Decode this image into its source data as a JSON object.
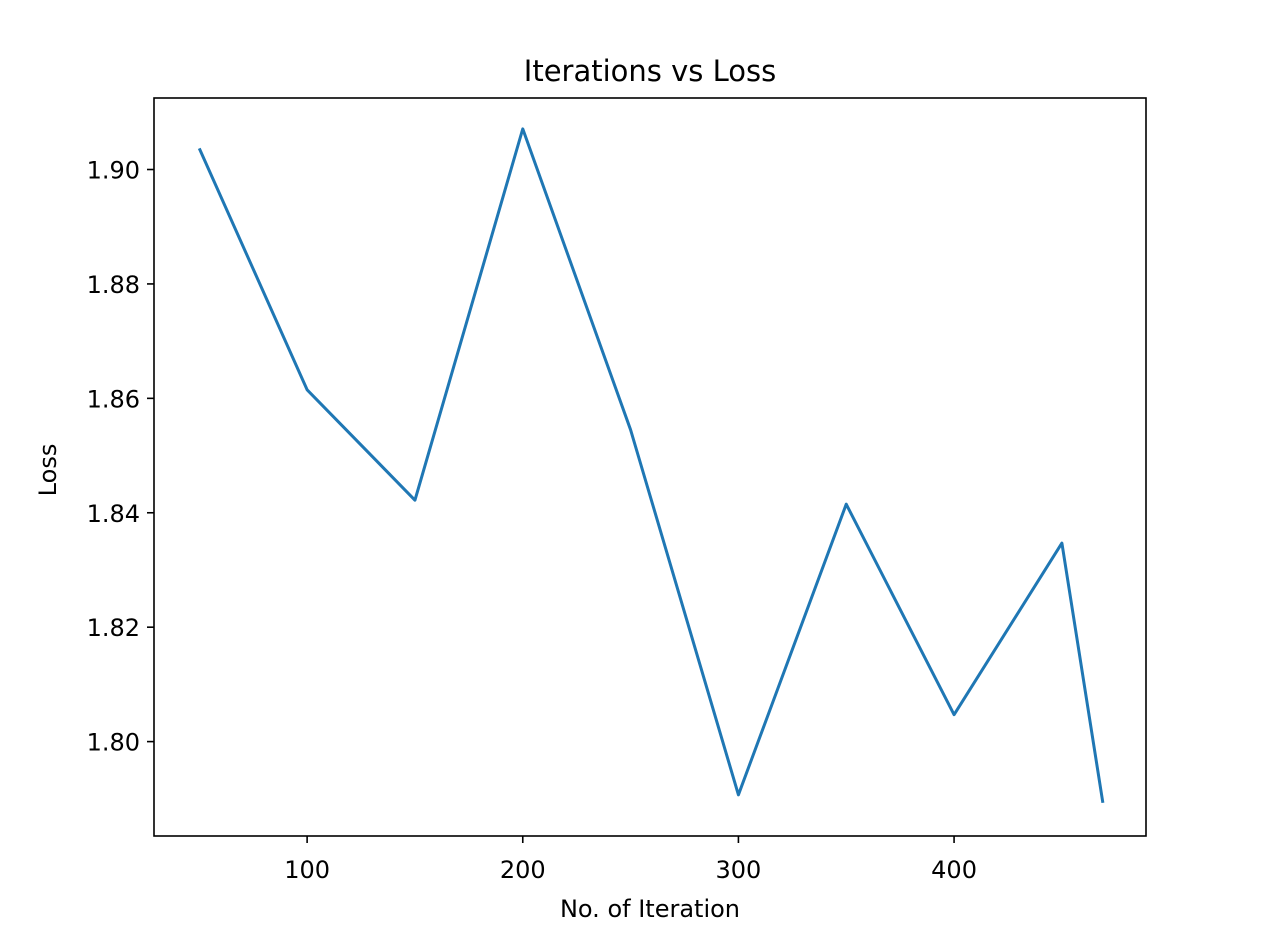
{
  "chart_data": {
    "type": "line",
    "title": "Iterations vs Loss",
    "xlabel": "No. of Iteration",
    "ylabel": "Loss",
    "xlim": [
      29,
      489
    ],
    "ylim": [
      1.7835,
      1.9125
    ],
    "x_ticks": [
      100,
      200,
      300,
      400
    ],
    "x_tick_labels": [
      "100",
      "200",
      "300",
      "400"
    ],
    "y_ticks": [
      1.8,
      1.82,
      1.84,
      1.86,
      1.88,
      1.9
    ],
    "y_tick_labels": [
      "1.80",
      "1.82",
      "1.84",
      "1.86",
      "1.88",
      "1.90"
    ],
    "grid": false,
    "legend": "none",
    "series": [
      {
        "color": "#1f77b4",
        "x": [
          50,
          100,
          150,
          200,
          250,
          300,
          350,
          400,
          450,
          469
        ],
        "y": [
          1.9037,
          1.8615,
          1.8422,
          1.9071,
          1.8545,
          1.7907,
          1.8415,
          1.8047,
          1.8347,
          1.7893
        ]
      }
    ]
  }
}
